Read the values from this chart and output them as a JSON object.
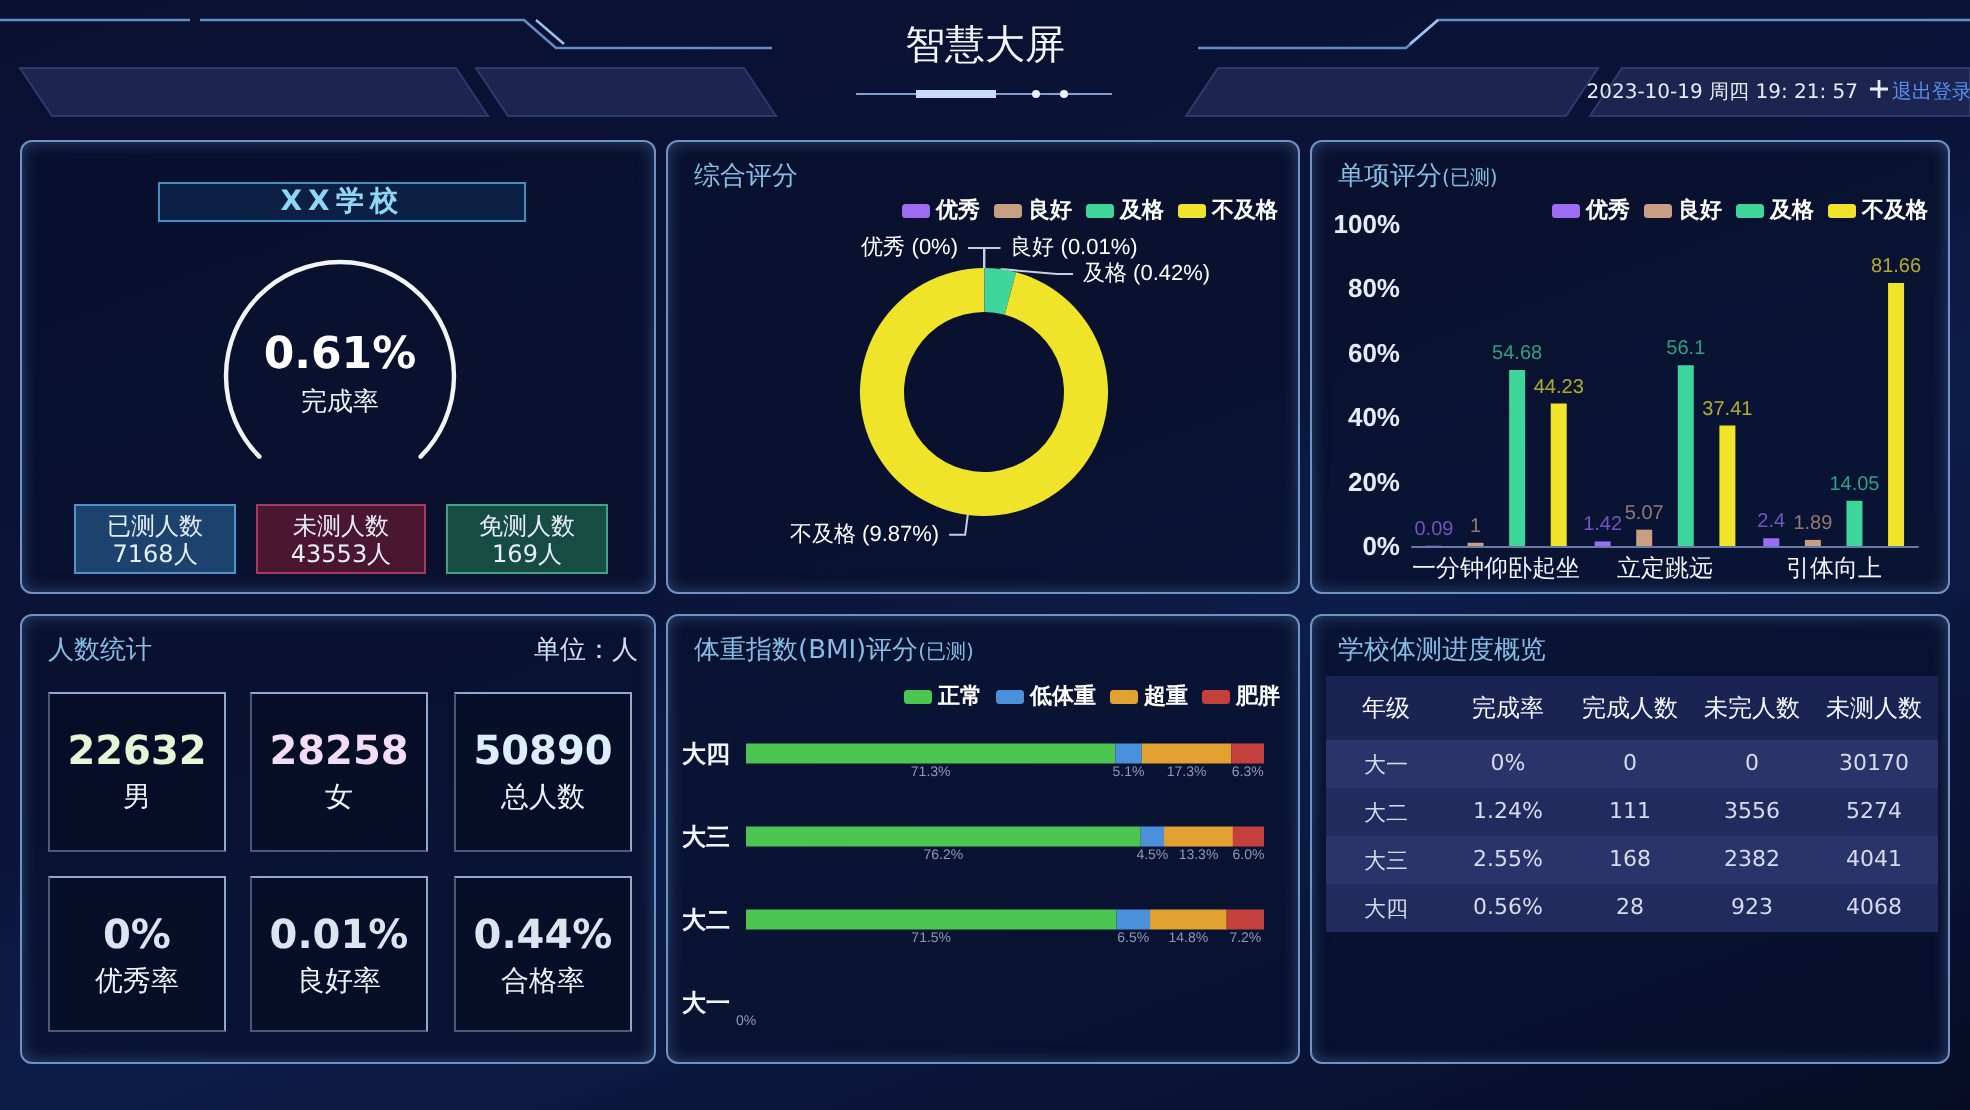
{
  "chart_data": [
    {
      "type": "other",
      "title": "智慧大屏",
      "annotations": [
        "2023-10-19 周四 19: 21: 57",
        "退出登录"
      ]
    },
    {
      "type": "other",
      "title": "XX学校",
      "annotations": [
        "0.61%",
        "完成率",
        "已测人数",
        "7168人",
        "未测人数",
        "43553人",
        "免测人数",
        "169人"
      ]
    },
    {
      "type": "donut",
      "title": "综合评分",
      "categories": [
        "优秀",
        "良好",
        "及格",
        "不及格"
      ],
      "values": [
        0,
        0.01,
        0.42,
        9.87
      ],
      "colors": [
        "#9d6cf2",
        "#c99f84",
        "#3fd69b",
        "#f0e42a"
      ],
      "value_labels": [
        "优秀 (0%)",
        "良好 (0.01%)",
        "及格 (0.42%)",
        "不及格 (9.87%)"
      ],
      "legend": "top right"
    },
    {
      "type": "bar",
      "title": "单项评分",
      "subtitle": "(已测)",
      "categories": [
        "一分钟仰卧起坐",
        "立定跳远",
        "引体向上"
      ],
      "series": [
        {
          "name": "优秀",
          "color": "#9d6cf2",
          "values": [
            0.09,
            1.42,
            2.4
          ]
        },
        {
          "name": "良好",
          "color": "#c99f84",
          "values": [
            1,
            5.07,
            1.89
          ]
        },
        {
          "name": "及格",
          "color": "#3fd69b",
          "values": [
            54.68,
            56.1,
            14.05
          ]
        },
        {
          "name": "不及格",
          "color": "#f0e42a",
          "values": [
            44.23,
            37.41,
            81.66
          ]
        }
      ],
      "ylim": [
        0,
        100
      ],
      "yticks": [
        {
          "value": 0,
          "label": "0%"
        },
        {
          "value": 20,
          "label": "20%"
        },
        {
          "value": 40,
          "label": "40%"
        },
        {
          "value": 60,
          "label": "60%"
        },
        {
          "value": 80,
          "label": "80%"
        },
        {
          "value": 100,
          "label": "100%"
        }
      ],
      "data_labels": true,
      "legend": "top right"
    },
    {
      "type": "other",
      "title": "人数统计",
      "annotations": [
        "单位：人",
        "22632",
        "男",
        "28258",
        "女",
        "50890",
        "总人数",
        "0%",
        "优秀率",
        "0.01%",
        "良好率",
        "0.44%",
        "合格率"
      ]
    },
    {
      "type": "bar",
      "orientation": "horizontal",
      "stacked": true,
      "title": "体重指数(BMI)评分",
      "subtitle": "(已测)",
      "categories": [
        "大四",
        "大三",
        "大二",
        "大一"
      ],
      "series": [
        {
          "name": "正常",
          "color": "#4cc552",
          "values": [
            71.3,
            76.2,
            71.5,
            0
          ],
          "value_labels": [
            "71.3%",
            "76.2%",
            "71.5%",
            null
          ]
        },
        {
          "name": "低体重",
          "color": "#4b90db",
          "values": [
            5.1,
            4.5,
            6.5,
            0
          ],
          "value_labels": [
            "5.1%",
            "4.5%",
            "6.5%",
            null
          ]
        },
        {
          "name": "超重",
          "color": "#e2a232",
          "values": [
            17.3,
            13.3,
            14.8,
            0
          ],
          "value_labels": [
            "17.3%",
            "13.3%",
            "14.8%",
            null
          ]
        },
        {
          "name": "肥胖",
          "color": "#c4403c",
          "values": [
            6.3,
            6.0,
            7.2,
            0
          ],
          "value_labels": [
            "6.3%",
            "6.0%",
            "7.2%",
            null
          ]
        }
      ],
      "annotations": [
        {
          "text": "0%",
          "x": 0,
          "y": "大一"
        }
      ],
      "legend": "top right"
    },
    {
      "type": "other",
      "title": "学校体测进度概览",
      "ylabel": "年级",
      "categories": [
        "完成率",
        "完成人数",
        "未完人数",
        "未测人数"
      ],
      "y_categories": [
        "大一",
        "大二",
        "大三",
        "大四"
      ],
      "cell_labels": [
        [
          "0%",
          "0",
          "0",
          "30170"
        ],
        [
          "1.24%",
          "111",
          "3556",
          "5274"
        ],
        [
          "2.55%",
          "168",
          "2382",
          "4041"
        ],
        [
          "0.56%",
          "28",
          "923",
          "4068"
        ]
      ]
    }
  ]
}
